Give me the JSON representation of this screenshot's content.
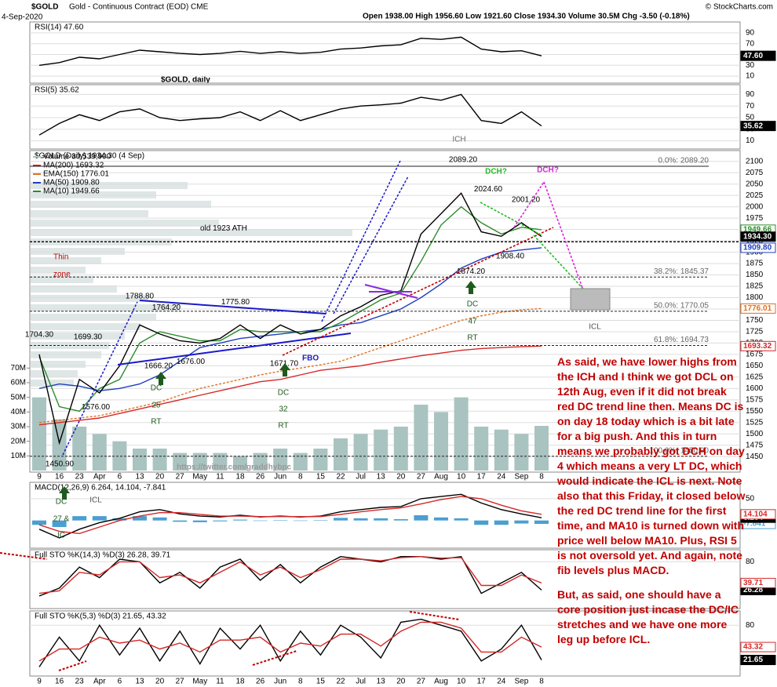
{
  "header": {
    "symbol": "$GOLD",
    "name": "Gold - Continuous Contract (EOD) CME",
    "date": "4-Sep-2020",
    "ohlc": "Open 1938.00  High 1956.60  Low 1921.60  Close 1934.30  Volume 30.5M  Chg -3.50 (-0.18%)",
    "copyright": "© StockCharts.com",
    "headline": "$GOLD, daily"
  },
  "chart_data": [
    {
      "type": "line",
      "title": "RSI(14) 47.60",
      "ylim": [
        0,
        100
      ],
      "yticks": [
        10,
        30,
        50,
        70,
        90
      ],
      "grid": true,
      "color": "#000000",
      "values": [
        30,
        35,
        45,
        42,
        50,
        58,
        55,
        52,
        50,
        52,
        56,
        52,
        55,
        52,
        54,
        60,
        62,
        66,
        68,
        80,
        78,
        82,
        60,
        55,
        57,
        47.6
      ],
      "last_label": "47.60"
    },
    {
      "type": "line",
      "title": "RSI(5) 35.62",
      "ylim": [
        0,
        100
      ],
      "yticks": [
        10,
        30,
        50,
        70,
        90
      ],
      "grid": true,
      "color": "#000000",
      "values": [
        20,
        40,
        55,
        45,
        60,
        65,
        50,
        45,
        48,
        50,
        60,
        45,
        62,
        45,
        55,
        65,
        70,
        72,
        75,
        85,
        80,
        90,
        45,
        40,
        60,
        35.62
      ],
      "last_label": "35.62"
    },
    {
      "type": "line",
      "title": "$GOLD (Daily) 1934.30 (4 Sep)",
      "categories": [
        "9",
        "16",
        "23",
        "Apr",
        "6",
        "13",
        "20",
        "27",
        "May",
        "11",
        "18",
        "26",
        "Jun",
        "8",
        "15",
        "22",
        "Jul",
        "13",
        "20",
        "27",
        "Aug",
        "10",
        "17",
        "24",
        "Sep",
        "8"
      ],
      "ylim": [
        1440,
        2110
      ],
      "yticks": [
        1450,
        1475,
        1500,
        1525,
        1550,
        1575,
        1600,
        1625,
        1650,
        1675,
        1700,
        1725,
        1750,
        1775,
        1800,
        1825,
        1850,
        1875,
        1900,
        1925,
        1950,
        1975,
        2000,
        2025,
        2050,
        2075,
        2100
      ],
      "y2lim": [
        0,
        75
      ],
      "y2ticks": [
        {
          "value": 10,
          "label": "10M"
        },
        {
          "value": 20,
          "label": "20M"
        },
        {
          "value": 30,
          "label": "30M"
        },
        {
          "value": 40,
          "label": "40M"
        },
        {
          "value": 50,
          "label": "50M"
        },
        {
          "value": 60,
          "label": "60M"
        },
        {
          "value": 70,
          "label": "70M"
        }
      ],
      "grid": true,
      "series": [
        {
          "name": "Volume 30,539,900",
          "color": "#a9c3c0",
          "axis": "y2",
          "type": "bar",
          "values": [
            50,
            35,
            30,
            25,
            20,
            15,
            15,
            12,
            12,
            12,
            10,
            12,
            15,
            12,
            15,
            22,
            25,
            28,
            30,
            45,
            40,
            50,
            30,
            28,
            25,
            30.5
          ]
        },
        {
          "name": "MA(200) 1693.32",
          "color": "#d62728",
          "values": [
            1520,
            1525,
            1530,
            1535,
            1545,
            1555,
            1565,
            1575,
            1585,
            1595,
            1605,
            1615,
            1620,
            1630,
            1640,
            1645,
            1650,
            1658,
            1665,
            1672,
            1678,
            1684,
            1688,
            1690,
            1692,
            1693.32
          ],
          "last_label": "1693.32"
        },
        {
          "name": "EMA(150) 1776.01",
          "color": "#e07020",
          "dash": true,
          "values": [
            1525,
            1530,
            1535,
            1540,
            1550,
            1560,
            1570,
            1585,
            1600,
            1610,
            1620,
            1630,
            1638,
            1645,
            1652,
            1660,
            1675,
            1690,
            1705,
            1720,
            1735,
            1750,
            1760,
            1768,
            1773,
            1776.01
          ],
          "last_label": "1776.01"
        },
        {
          "name": "MA(50) 1909.80",
          "color": "#1f3fbf",
          "values": [
            1600,
            1610,
            1605,
            1595,
            1600,
            1610,
            1630,
            1660,
            1690,
            1700,
            1710,
            1715,
            1720,
            1725,
            1730,
            1740,
            1745,
            1760,
            1775,
            1800,
            1830,
            1865,
            1885,
            1900,
            1905,
            1909.8
          ],
          "last_label": "1909.80"
        },
        {
          "name": "MA(10) 1949.66",
          "color": "#2e8b2e",
          "values": [
            1670,
            1560,
            1550,
            1600,
            1620,
            1700,
            1725,
            1715,
            1705,
            1705,
            1730,
            1725,
            1725,
            1725,
            1725,
            1745,
            1770,
            1795,
            1810,
            1880,
            1960,
            2000,
            1965,
            1940,
            1955,
            1949.66
          ],
          "last_label": "1949.66"
        },
        {
          "color": "#000000",
          "values": [
            1675,
            1480,
            1620,
            1590,
            1650,
            1740,
            1720,
            1705,
            1700,
            1710,
            1740,
            1710,
            1740,
            1720,
            1730,
            1760,
            1780,
            1805,
            1815,
            1940,
            1985,
            2030,
            1945,
            1935,
            1965,
            1934.3
          ],
          "last_label": "1934.30"
        }
      ],
      "fib_levels": [
        {
          "label": "0.0%: 2089.20",
          "value": 2089.2
        },
        {
          "label": "38.2%: 1845.37",
          "value": 1845.37
        },
        {
          "label": "50.0%: 1770.05",
          "value": 1770.05
        },
        {
          "label": "61.8%: 1694.73",
          "value": 1694.73
        },
        {
          "label": "100.0%: 1450.90",
          "value": 1450.9
        }
      ],
      "ath": {
        "label": "old 1923 ATH",
        "value": 1923
      },
      "price_labels": [
        {
          "value": 2089.2,
          "label": "2089.20"
        },
        {
          "value": 2024.6,
          "label": "2024.60"
        },
        {
          "value": 2001.2,
          "label": "2001.20"
        },
        {
          "value": 1908.4,
          "label": "1908.40"
        },
        {
          "value": 1874.2,
          "label": "1874.20"
        },
        {
          "value": 1788.8,
          "label": "1788.80"
        },
        {
          "value": 1764.2,
          "label": "1764.20"
        },
        {
          "value": 1775.8,
          "label": "1775.80"
        },
        {
          "value": 1704.3,
          "label": "1704.30"
        },
        {
          "value": 1699.3,
          "label": "1699.30"
        },
        {
          "value": 1666.2,
          "label": "1666.20"
        },
        {
          "value": 1676,
          "label": "1676.00"
        },
        {
          "value": 1671.7,
          "label": "1671.70"
        },
        {
          "value": 1576,
          "label": "1576.00"
        },
        {
          "value": 1450.9,
          "label": "1450.90"
        }
      ],
      "annotations": [
        "ICH",
        "DCH?",
        "DCH?",
        "Thin",
        "zone",
        "FBO",
        "DC",
        "25",
        "RT",
        "DC",
        "32",
        "RT",
        "DC",
        "47",
        "RT",
        "ICL",
        "DC",
        "27 &",
        "IC",
        "ICL",
        "https://twitter.com/graddhybpc"
      ]
    },
    {
      "type": "line",
      "title": "MACD(12,26,9) 6.264, 14.104, -7.841",
      "ylim": [
        -60,
        75
      ],
      "yticks": [
        50
      ],
      "grid": true,
      "series": [
        {
          "color": "#4a9fd0",
          "type": "bar",
          "values": [
            -10,
            -15,
            10,
            10,
            5,
            10,
            7,
            -3,
            -4,
            -2,
            2,
            -1,
            1,
            -1,
            1,
            6,
            5,
            5,
            3,
            12,
            7,
            5,
            -10,
            -10,
            -7,
            -7.841
          ],
          "last_label": "-7.841"
        },
        {
          "color": "#000000",
          "values": [
            -20,
            -40,
            -20,
            -5,
            5,
            20,
            25,
            15,
            10,
            8,
            12,
            8,
            10,
            8,
            10,
            20,
            25,
            30,
            32,
            50,
            55,
            60,
            40,
            25,
            15,
            6.264
          ],
          "last_label": "6.264"
        },
        {
          "color": "#d62728",
          "values": [
            -10,
            -25,
            -30,
            -15,
            0,
            10,
            18,
            18,
            14,
            10,
            10,
            9,
            9,
            9,
            9,
            14,
            20,
            25,
            29,
            38,
            48,
            55,
            50,
            35,
            22,
            14.104
          ],
          "last_label": "14.104"
        }
      ]
    },
    {
      "type": "line",
      "title": "Full STO %K(14,3) %D(3) 26.28, 39.71",
      "ylim": [
        0,
        100
      ],
      "yticks": [
        80
      ],
      "grid": true,
      "series": [
        {
          "color": "#000000",
          "values": [
            15,
            30,
            70,
            50,
            85,
            80,
            40,
            60,
            30,
            70,
            85,
            45,
            75,
            40,
            70,
            90,
            85,
            80,
            90,
            90,
            85,
            90,
            20,
            40,
            60,
            26.28
          ],
          "last_label": "26.28"
        },
        {
          "color": "#d62728",
          "values": [
            20,
            25,
            60,
            55,
            80,
            80,
            50,
            55,
            40,
            60,
            80,
            55,
            70,
            50,
            65,
            85,
            85,
            82,
            88,
            90,
            87,
            88,
            35,
            35,
            55,
            39.71
          ],
          "last_label": "39.71"
        }
      ]
    },
    {
      "type": "line",
      "title": "Full STO %K(5,3) %D(3) 21.65, 43.32",
      "ylim": [
        0,
        100
      ],
      "yticks": [
        80
      ],
      "grid": true,
      "series": [
        {
          "color": "#000000",
          "values": [
            10,
            60,
            20,
            80,
            30,
            75,
            20,
            70,
            15,
            75,
            40,
            80,
            20,
            70,
            30,
            80,
            60,
            25,
            85,
            90,
            80,
            70,
            20,
            40,
            80,
            21.65
          ],
          "last_label": "21.65"
        },
        {
          "color": "#d62728",
          "values": [
            20,
            40,
            40,
            60,
            50,
            55,
            40,
            50,
            35,
            55,
            55,
            60,
            35,
            50,
            45,
            65,
            65,
            45,
            70,
            85,
            85,
            75,
            35,
            35,
            60,
            43.32
          ],
          "last_label": "43.32"
        }
      ]
    }
  ],
  "notes": [
    "As said, we have lower highs from the ICH and I think we got DCL on 12th Aug, even if it did not break red DC trend line then. Means DC is on day 18 today which is a bit late for a big push. And this in turn means we probably got DCH on day 4 which means a very LT DC, which would indicate the ICL is next. Note also that this Friday, it closed below the red DC trend line for the first time, and MA10 is turned down with price well below MA10. Plus, RSI 5 is not oversold yet. And again, note fib levels plus MACD.",
    "But, as said, one should have a core position just incase the DC/IC stretches and we have one more leg up before ICL."
  ]
}
